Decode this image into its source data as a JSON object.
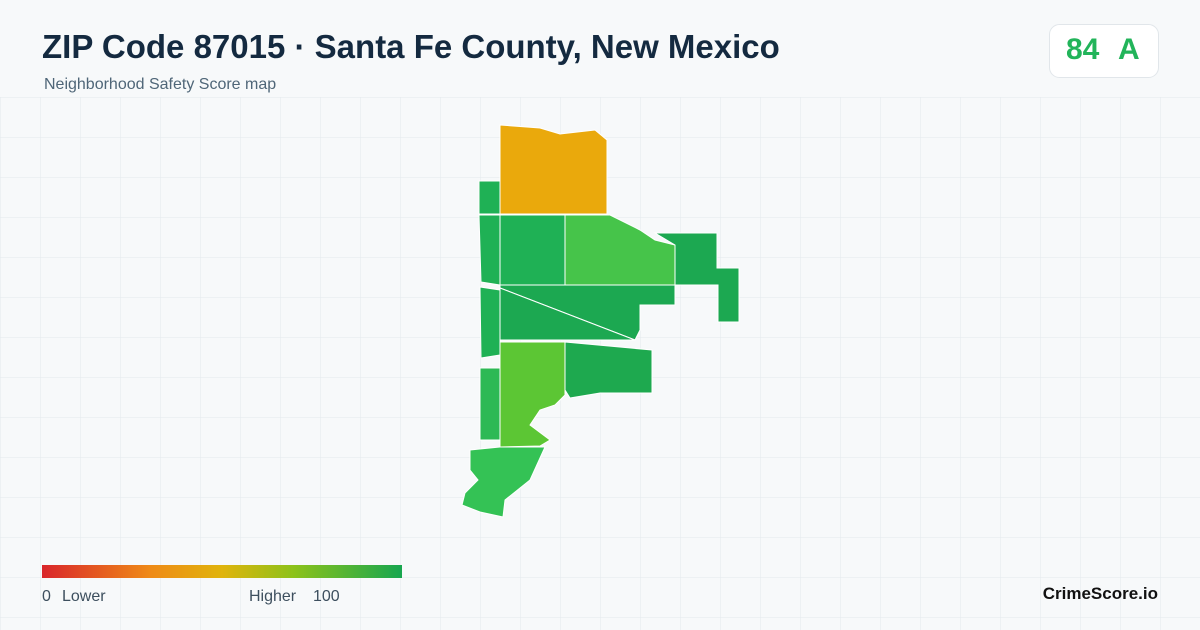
{
  "header": {
    "title": "ZIP Code 87015 · Santa Fe County, New Mexico",
    "subtitle": "Neighborhood Safety Score map"
  },
  "score": {
    "value": "84",
    "grade": "A"
  },
  "legend": {
    "min": "0",
    "min_label": "Lower",
    "max_label": "Higher",
    "max": "100"
  },
  "brand": "CrimeScore.io"
}
